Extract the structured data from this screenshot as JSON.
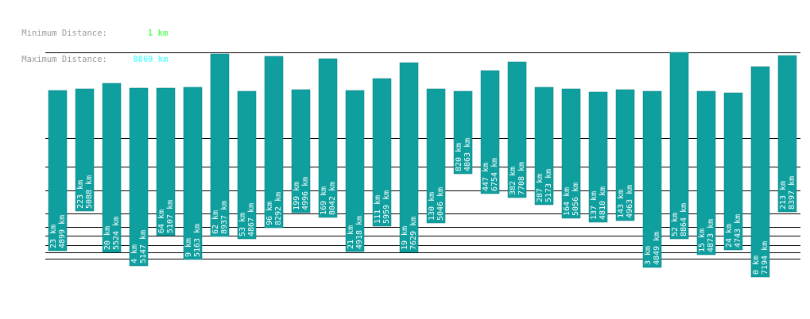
{
  "legend": {
    "min_label": "Minimum Distance:",
    "min_value": "1 km",
    "min_color": "#66ff66",
    "max_label": "Maximum Distance:",
    "max_value": "8869 km",
    "max_color": "#66ffff"
  },
  "colors": {
    "bar": "#109f9f",
    "bar_stroke": "#0b7a7a",
    "line": "#000000"
  },
  "chart_data": {
    "type": "bar",
    "title": "",
    "xlabel": "",
    "ylabel": "",
    "bars": [
      {
        "near": "23 km",
        "far": "4899 km"
      },
      {
        "near": "223 km",
        "far": "5088 km"
      },
      {
        "near": "20 km",
        "far": "5524 km"
      },
      {
        "near": "4 km",
        "far": "5147 km"
      },
      {
        "near": "64 km",
        "far": "5107 km"
      },
      {
        "near": "9 km",
        "far": "5163 km"
      },
      {
        "near": "62 km",
        "far": "8937 km"
      },
      {
        "near": "53 km",
        "far": "4867 km"
      },
      {
        "near": "96 km",
        "far": "8292 km"
      },
      {
        "near": "199 km",
        "far": "4996 km"
      },
      {
        "near": "169 km",
        "far": "8042 km"
      },
      {
        "near": "21 km",
        "far": "4918 km"
      },
      {
        "near": "111 km",
        "far": "5959 km"
      },
      {
        "near": "19 km",
        "far": "7629 km"
      },
      {
        "near": "130 km",
        "far": "5046 km"
      },
      {
        "near": "820 km",
        "far": "4863 km"
      },
      {
        "near": "447 km",
        "far": "6754 km"
      },
      {
        "near": "382 km",
        "far": "7708 km"
      },
      {
        "near": "287 km",
        "far": "5173 km"
      },
      {
        "near": "164 km",
        "far": "5056 km"
      },
      {
        "near": "137 km",
        "far": "4810 km"
      },
      {
        "near": "143 km",
        "far": "4963 km"
      },
      {
        "near": "3 km",
        "far": "4849 km"
      },
      {
        "near": "52 km",
        "far": "8864 km"
      },
      {
        "near": "15 km",
        "far": "4873 km"
      },
      {
        "near": "24 km",
        "far": "4743 km"
      },
      {
        "near": "0 km",
        "far": "7194 km"
      },
      {
        "near": "213 km",
        "far": "8397 km"
      }
    ]
  }
}
